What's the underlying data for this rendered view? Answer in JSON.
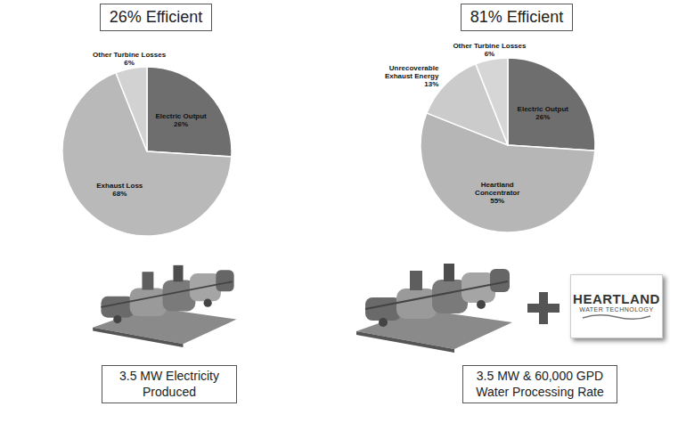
{
  "chart_data": [
    {
      "type": "pie",
      "title": "26% Efficient",
      "categories": [
        "Electric Output",
        "Exhaust Loss",
        "Other Turbine Losses"
      ],
      "values": [
        26,
        68,
        6
      ],
      "value_labels": [
        "26%",
        "68%",
        "6%"
      ],
      "colors": [
        "#6e6e6e",
        "#b9b9b9",
        "#d2d2d2"
      ],
      "data_labels": true,
      "annotations": [
        "3.5 MW Electricity Produced"
      ]
    },
    {
      "type": "pie",
      "title": "81% Efficient",
      "categories": [
        "Electric Output",
        "Heartland Concentrator",
        "Unrecoverable Exhaust Energy",
        "Other Turbine Losses"
      ],
      "values": [
        26,
        55,
        13,
        6
      ],
      "value_labels": [
        "26%",
        "55%",
        "13%",
        "6%"
      ],
      "colors": [
        "#6e6e6e",
        "#b6b6b6",
        "#cbcbcb",
        "#d6d6d6"
      ],
      "data_labels": true,
      "annotations": [
        "3.5 MW & 60,000 GPD Water Processing Rate",
        "HEARTLAND",
        "WATER TECHNOLOGY"
      ]
    }
  ]
}
